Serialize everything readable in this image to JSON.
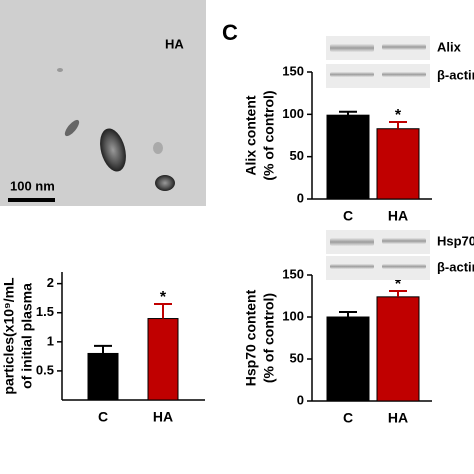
{
  "panel_label": "C",
  "micrograph": {
    "label": "HA",
    "scale_bar": "100 nm"
  },
  "chart_data": [
    {
      "type": "bar",
      "ylabel": [
        "particles(x10⁹/mL",
        "of initial plasma"
      ],
      "categories": [
        "C",
        "HA"
      ],
      "values": [
        0.8,
        1.4
      ],
      "errors": [
        0.13,
        0.25
      ],
      "colors": [
        "#000000",
        "#c00000"
      ],
      "significance": [
        null,
        "*"
      ],
      "ylim": [
        0,
        2.2
      ],
      "yticks": [
        0.5,
        1,
        1.5,
        2
      ]
    },
    {
      "type": "bar",
      "ylabel": [
        "Alix content",
        "(% of control)"
      ],
      "blot_labels": [
        "Alix",
        "β-actin"
      ],
      "categories": [
        "C",
        "HA"
      ],
      "values": [
        99,
        83
      ],
      "errors": [
        4,
        8
      ],
      "colors": [
        "#000000",
        "#c00000"
      ],
      "significance": [
        null,
        "*"
      ],
      "ylim": [
        0,
        150
      ],
      "yticks": [
        0,
        50,
        100,
        150
      ]
    },
    {
      "type": "bar",
      "ylabel": [
        "Hsp70 content",
        "(% of control)"
      ],
      "blot_labels": [
        "Hsp70",
        "β-actin"
      ],
      "categories": [
        "C",
        "HA"
      ],
      "values": [
        100,
        124
      ],
      "errors": [
        6,
        7
      ],
      "colors": [
        "#000000",
        "#c00000"
      ],
      "significance": [
        null,
        "*"
      ],
      "ylim": [
        0,
        150
      ],
      "yticks": [
        0,
        50,
        100,
        150
      ]
    }
  ]
}
